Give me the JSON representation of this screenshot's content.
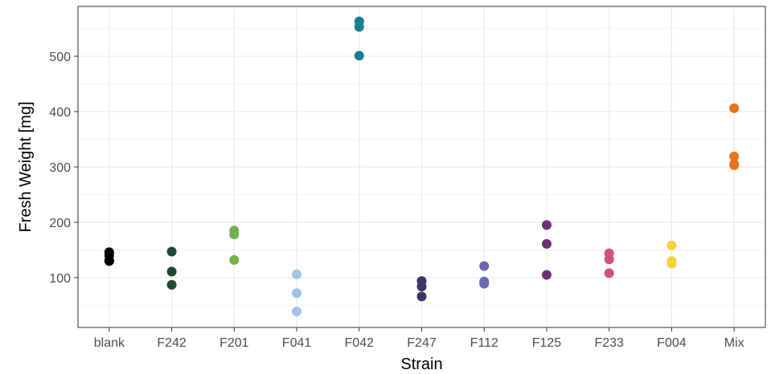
{
  "chart_data": {
    "type": "scatter",
    "title": "",
    "xlabel": "Strain",
    "ylabel": "Fresh Weight [mg]",
    "categories": [
      "blank",
      "F242",
      "F201",
      "F041",
      "F042",
      "F247",
      "F112",
      "F125",
      "F233",
      "F004",
      "Mix"
    ],
    "ylim": [
      10,
      590
    ],
    "yticks": [
      100,
      200,
      300,
      400,
      500
    ],
    "grid": true,
    "legend": "none",
    "series": [
      {
        "category": "blank",
        "color": "#000000",
        "values": [
          146,
          140,
          131,
          130
        ]
      },
      {
        "category": "F242",
        "color": "#1f4a2e",
        "values": [
          147,
          111,
          87
        ]
      },
      {
        "category": "F201",
        "color": "#70b04f",
        "values": [
          185,
          178,
          132
        ]
      },
      {
        "category": "F041",
        "color": "#9dc3e6",
        "values": [
          106,
          72,
          39
        ]
      },
      {
        "category": "F042",
        "color": "#1c7d92",
        "values": [
          563,
          553,
          501
        ]
      },
      {
        "category": "F247",
        "color": "#3d3768",
        "values": [
          94,
          84,
          66
        ]
      },
      {
        "category": "F112",
        "color": "#6a67b5",
        "values": [
          121,
          93,
          89
        ]
      },
      {
        "category": "F125",
        "color": "#6e2f7a",
        "values": [
          195,
          161,
          105
        ]
      },
      {
        "category": "F233",
        "color": "#d45277",
        "values": [
          144,
          133,
          108
        ]
      },
      {
        "category": "F004",
        "color": "#f5d03d",
        "values": [
          158,
          130,
          125
        ]
      },
      {
        "category": "Mix",
        "color": "#e8731c",
        "values": [
          406,
          319,
          305,
          303
        ]
      }
    ]
  }
}
